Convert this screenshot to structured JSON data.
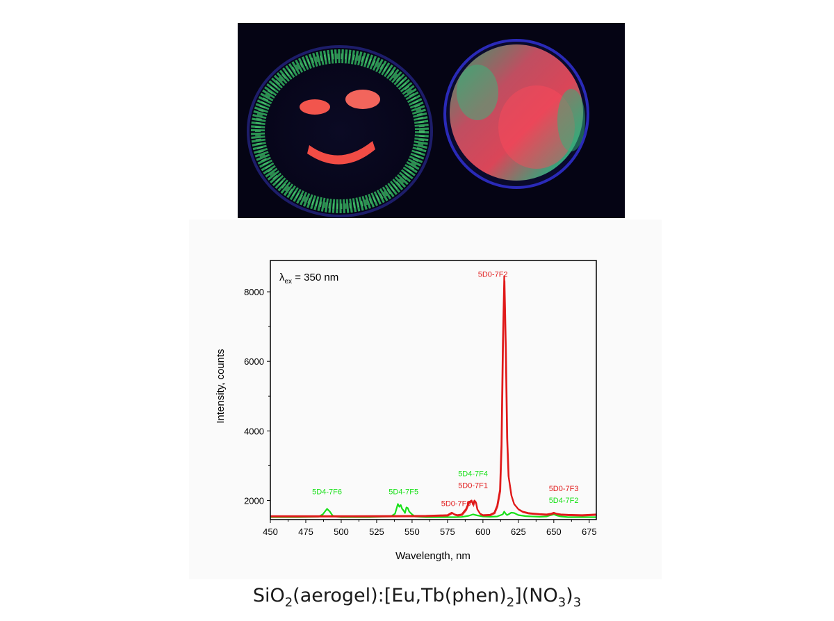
{
  "photo": {
    "description_icon": "petri-dishes-photo",
    "colors": {
      "background": "#07061a",
      "green": "#2fb35a",
      "red": "#ff4a4a",
      "blue_rim": "#2a2ab8"
    }
  },
  "chart_data": {
    "type": "line",
    "xlabel": "Wavelength, nm",
    "ylabel": "Intensity, counts",
    "xlim": [
      450,
      680
    ],
    "ylim": [
      1450,
      8900
    ],
    "xticks": [
      450,
      475,
      500,
      525,
      550,
      575,
      600,
      625,
      650,
      675
    ],
    "yticks": [
      2000,
      4000,
      6000,
      8000
    ],
    "annotation": {
      "lambda": "λ",
      "sub": "ex",
      "rest": " = 350 nm"
    },
    "series": [
      {
        "color": "#18e018",
        "x": [
          450,
          470,
          484,
          487,
          490,
          492,
          494,
          497,
          500,
          520,
          535,
          538,
          540,
          541,
          542,
          543,
          544,
          545,
          546,
          547,
          548,
          550,
          552,
          555,
          560,
          580,
          585,
          590,
          593,
          596,
          600,
          605,
          610,
          612,
          614,
          615,
          616,
          617,
          618,
          620,
          622,
          625,
          630,
          640,
          645,
          648,
          650,
          652,
          655,
          660,
          670,
          680
        ],
        "y": [
          1520,
          1520,
          1530,
          1600,
          1760,
          1680,
          1560,
          1530,
          1520,
          1520,
          1540,
          1620,
          1900,
          1820,
          1870,
          1760,
          1710,
          1640,
          1800,
          1780,
          1680,
          1600,
          1540,
          1530,
          1520,
          1520,
          1525,
          1560,
          1600,
          1570,
          1540,
          1530,
          1540,
          1570,
          1600,
          1680,
          1620,
          1580,
          1600,
          1650,
          1640,
          1580,
          1550,
          1530,
          1540,
          1580,
          1600,
          1570,
          1540,
          1520,
          1520,
          1520
        ]
      },
      {
        "color": "#e01818",
        "x": [
          450,
          500,
          540,
          560,
          575,
          578,
          580,
          582,
          585,
          588,
          590,
          592,
          593,
          594,
          595,
          596,
          598,
          600,
          605,
          608,
          610,
          612,
          613,
          614,
          615,
          616,
          617,
          618,
          620,
          622,
          625,
          628,
          632,
          640,
          645,
          648,
          650,
          652,
          655,
          660,
          670,
          680
        ],
        "y": [
          1550,
          1550,
          1555,
          1560,
          1580,
          1650,
          1600,
          1580,
          1600,
          1750,
          1950,
          2000,
          1880,
          2000,
          1950,
          1750,
          1620,
          1580,
          1590,
          1650,
          1850,
          2300,
          3600,
          6500,
          8450,
          6500,
          3800,
          2700,
          2150,
          1900,
          1750,
          1680,
          1640,
          1610,
          1600,
          1620,
          1650,
          1620,
          1600,
          1590,
          1580,
          1600
        ]
      }
    ],
    "annotations": [
      {
        "lines": [
          "5D4-7F6"
        ],
        "x": 490,
        "y": 2180,
        "color": "#18e018"
      },
      {
        "lines": [
          "5D4-7F5"
        ],
        "x": 544,
        "y": 2180,
        "color": "#18e018"
      },
      {
        "lines": [
          "5D0-7F0"
        ],
        "x": 581,
        "y": 1840,
        "color": "#e01818"
      },
      {
        "lines": [
          "5D4-7F4",
          "5D0-7F1"
        ],
        "x": 593,
        "y": 2700,
        "colors": [
          "#18e018",
          "#e01818"
        ]
      },
      {
        "lines": [
          "5D0-7F2"
        ],
        "x": 607,
        "y": 8430,
        "color": "#e01818"
      },
      {
        "lines": [
          "5D0-7F3",
          "5D4-7F2"
        ],
        "x": 657,
        "y": 2270,
        "colors": [
          "#e01818",
          "#18e018"
        ]
      }
    ]
  },
  "caption": {
    "prefix": "SiO",
    "sub1": "2",
    "part2": "(aerogel):[Eu,Tb(phen)",
    "sub2": "2",
    "part3": "](NO",
    "sub3": "3",
    "part4": ")",
    "sub4": "3"
  }
}
